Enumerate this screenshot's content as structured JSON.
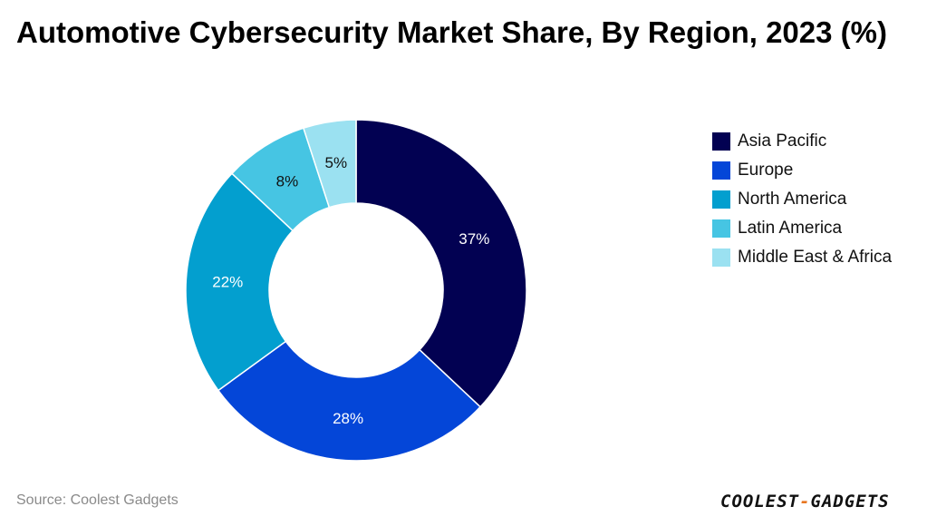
{
  "chart_data": {
    "type": "pie",
    "title": "Automotive Cybersecurity Market Share, By Region, 2023 (%)",
    "categories": [
      "Asia Pacific",
      "Europe",
      "North America",
      "Latin America",
      "Middle East & Africa"
    ],
    "values": [
      37,
      28,
      22,
      8,
      5
    ],
    "data_labels": [
      "37%",
      "28%",
      "22%",
      "8%",
      "5%"
    ],
    "colors": [
      "#020152",
      "#0446d8",
      "#039fcf",
      "#46c5e3",
      "#9be1f1"
    ],
    "label_colors": [
      "#ffffff",
      "#ffffff",
      "#ffffff",
      "#111111",
      "#111111"
    ],
    "legend_position": "right",
    "donut": true
  },
  "source": "Source: Coolest Gadgets",
  "logo_text": "COOLEST-GADGETS"
}
